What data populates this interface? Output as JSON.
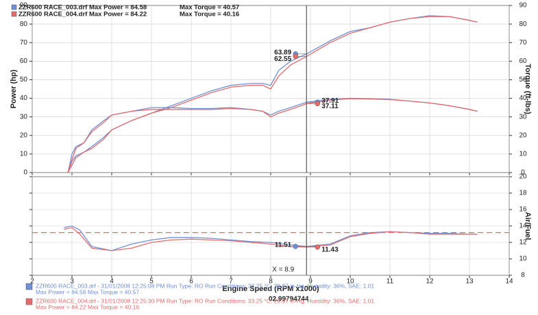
{
  "chart_data": [
    {
      "type": "line",
      "ylabel": "Power (hp)",
      "y2label": "Torque (ft-lbs)",
      "xlim": [
        2,
        14
      ],
      "xticks": [
        2,
        3,
        4,
        5,
        6,
        7,
        8,
        9,
        10,
        11,
        12,
        13,
        14
      ],
      "ylim": [
        0,
        90
      ],
      "yticks": [
        0,
        10,
        20,
        30,
        40,
        50,
        60,
        70,
        80,
        90
      ],
      "y2lim": [
        0,
        90
      ],
      "y2ticks": [
        0,
        10,
        20,
        30,
        40,
        50,
        60,
        70,
        80,
        90
      ],
      "grid": true,
      "legend": [
        {
          "color": "#6f8fd6",
          "run": "ZZR600 RACE_003.drf Max Power = 84.58",
          "torque": "Max Torque = 40.57"
        },
        {
          "color": "#e56b6b",
          "run": "ZZR600 RACE_004.drf Max Power = 84.22",
          "torque": "Max Torque = 40.16"
        }
      ],
      "x": [
        2.9,
        3.0,
        3.1,
        3.3,
        3.5,
        3.8,
        4.0,
        4.5,
        5.0,
        5.5,
        6.0,
        6.5,
        7.0,
        7.5,
        7.8,
        8.0,
        8.2,
        8.5,
        8.9,
        9.5,
        10,
        10.5,
        11,
        11.5,
        12,
        12.5,
        13,
        13.2
      ],
      "series": [
        {
          "color": "#6f8fd6",
          "values": [
            0,
            6,
            9,
            11,
            14,
            19,
            23,
            28,
            32,
            36,
            40,
            44,
            47,
            48,
            48,
            47,
            55,
            60,
            63.89,
            71,
            76,
            78,
            81,
            83,
            84.5,
            84,
            82,
            81
          ],
          "cursor_value": 63.89
        },
        {
          "color": "#e56b6b",
          "values": [
            0,
            4,
            8,
            11,
            13,
            18,
            23,
            28,
            32,
            35,
            39,
            43,
            46,
            47,
            47,
            45,
            52,
            58,
            62.55,
            70,
            75,
            78,
            81,
            83,
            84,
            84,
            82,
            81
          ],
          "cursor_value": 62.55
        },
        {
          "color": "#6f8fd6",
          "axis": "y2",
          "values": [
            0,
            10,
            14,
            16,
            23,
            28,
            31,
            33,
            35,
            35,
            34.5,
            34.5,
            35,
            34,
            33,
            31,
            33,
            35,
            37.91,
            39.5,
            40,
            39.8,
            39.5,
            38.5,
            37.5,
            36,
            34,
            33
          ],
          "cursor_value": 37.91
        },
        {
          "color": "#e56b6b",
          "axis": "y2",
          "values": [
            0,
            7,
            13,
            16,
            22,
            27,
            31,
            33,
            34,
            34,
            34,
            34,
            34.5,
            34,
            33,
            30,
            32,
            34,
            37.11,
            39,
            39.8,
            39.6,
            39.3,
            38.5,
            37.5,
            36,
            34,
            33
          ],
          "cursor_value": 37.11
        }
      ],
      "cursor": {
        "x": 8.9
      }
    },
    {
      "type": "line",
      "xlabel": "Engine Speed (RPM x1000)",
      "y2label": "Air/Fuel",
      "xlim": [
        2,
        14
      ],
      "xticks": [
        2,
        3,
        4,
        5,
        6,
        7,
        8,
        9,
        10,
        11,
        12,
        13,
        14
      ],
      "ylim": [
        8,
        20
      ],
      "yticks": [
        8,
        10,
        12,
        14,
        16,
        18,
        20
      ],
      "y2lim": [
        8,
        20
      ],
      "y2ticks": [
        8,
        10,
        12,
        14,
        16,
        18,
        20
      ],
      "grid": true,
      "target": {
        "value": 13.2,
        "color": "#e56b6b"
      },
      "x": [
        2.8,
        3.0,
        3.2,
        3.5,
        4.0,
        4.5,
        5,
        5.5,
        6,
        6.5,
        7,
        7.5,
        8,
        8.5,
        8.9,
        9.5,
        10,
        10.5,
        11,
        11.5,
        12,
        12.5,
        13,
        13.2
      ],
      "series": [
        {
          "color": "#6f8fd6",
          "axis": "y2",
          "values": [
            13.8,
            14,
            13.5,
            11.5,
            11,
            11.8,
            12.3,
            12.6,
            12.6,
            12.5,
            12.3,
            12.1,
            12,
            11.7,
            11.51,
            11.8,
            12.8,
            13.2,
            13.3,
            13.2,
            13.1,
            13.1,
            13,
            13
          ],
          "cursor_value": 11.51
        },
        {
          "color": "#e56b6b",
          "axis": "y2",
          "values": [
            13.6,
            13.8,
            13,
            11.3,
            11,
            11.3,
            12,
            12.3,
            12.4,
            12.3,
            12.2,
            12,
            11.8,
            11.5,
            11.43,
            11.7,
            12.7,
            13.1,
            13.3,
            13.2,
            13,
            13,
            13,
            13
          ],
          "cursor_value": 11.43
        }
      ],
      "cursor": {
        "x": 8.9,
        "label": "X = 8.9",
        "readout": "02.99794744"
      }
    }
  ],
  "footer": [
    {
      "color": "#6f8fd6",
      "line1": "ZZR600 RACE_003.drf - 31/01/2008 12:25:08 PM  Run Type: RO  Run Conditions: 33.25 °C, 29.97 in-Hg,  Humidity:  36%, SAE: 1.01",
      "line2": "Max Power = 84.58  Max Torque = 40.57"
    },
    {
      "color": "#e56b6b",
      "line1": "ZZR600 RACE_004.drf - 31/01/2008 12:25:30 PM  Run Type: RO  Run Conditions: 33.25 °C, 29.97 in-Hg,  Humidity:  36%, SAE: 1.01",
      "line2": "Max Power = 84.22  Max Torque = 40.16"
    }
  ]
}
